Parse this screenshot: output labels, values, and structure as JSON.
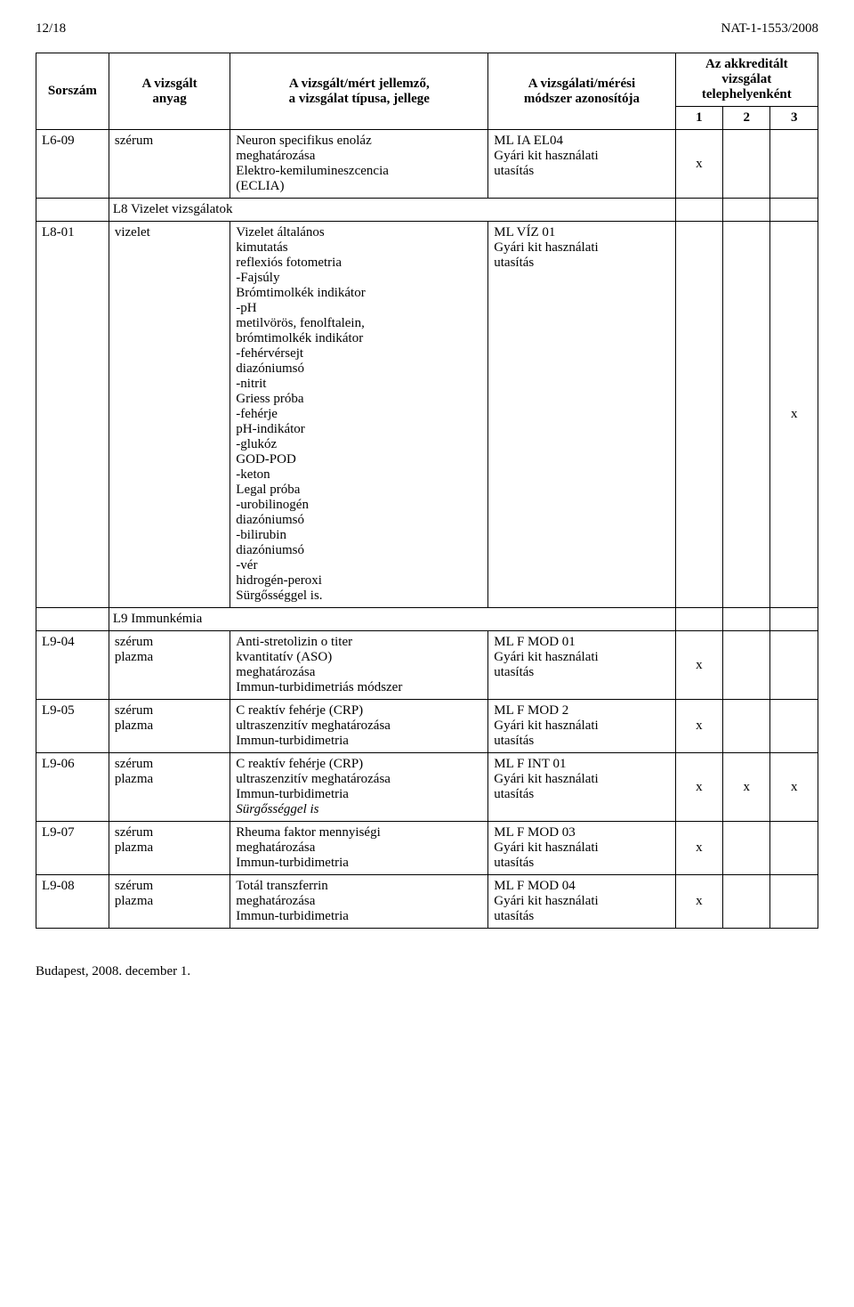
{
  "page_header": {
    "left": "12/18",
    "right": "NAT-1-1553/2008"
  },
  "columns": {
    "sorszam": "Sorszám",
    "anyag": "A vizsgált\nanyag",
    "jellemzo": "A vizsgált/mért jellemző,\na vizsgálat típusa, jellege",
    "modszer": "A vizsgálati/mérési\nmódszer azonosítója",
    "akk": "Az akkreditált\nvizsgálat\ntelephelyenként",
    "c1": "1",
    "c2": "2",
    "c3": "3"
  },
  "rows": [
    {
      "sor": "L6-09",
      "anyag": "szérum",
      "jell": "Neuron specifikus enoláz\nmeghatározása\nElektro-kemilumineszcencia\n(ECLIA)",
      "mod": "ML IA EL04\nGyári kit használati\nutasítás",
      "m": [
        "x",
        "",
        ""
      ]
    },
    {
      "section": "L8 Vizelet vizsgálatok"
    },
    {
      "sor": "L8-01",
      "anyag": "vizelet",
      "jell": "Vizelet általános\nkimutatás\nreflexiós fotometria\n-Fajsúly\nBrómtimolkék indikátor\n-pH\nmetilvörös, fenolftalein,\nbrómtimolkék indikátor\n-fehérvérsejt\ndiazóniumsó\n-nitrit\nGriess próba\n-fehérje\npH-indikátor\n-glukóz\nGOD-POD\n-keton\nLegal próba\n-urobilinogén\ndiazóniumsó\n-bilirubin\ndiazóniumsó\n-vér\nhidrogén-peroxi\nSürgősséggel is.",
      "mod": "ML VÍZ 01\nGyári kit használati\nutasítás",
      "m": [
        "",
        "",
        "x"
      ]
    },
    {
      "section": "L9 Immunkémia"
    },
    {
      "sor": "L9-04",
      "anyag": "szérum\nplazma",
      "jell": "Anti-stretolizin o titer\nkvantitatív (ASO)\nmeghatározása\nImmun-turbidimetriás módszer",
      "mod": "ML F MOD 01\nGyári kit használati\nutasítás",
      "m": [
        "x",
        "",
        ""
      ]
    },
    {
      "sor": "L9-05",
      "anyag": "szérum\nplazma",
      "jell": "C reaktív fehérje (CRP)\nultraszenzitív meghatározása\nImmun-turbidimetria",
      "mod": "ML F MOD 2\nGyári kit használati\nutasítás",
      "m": [
        "x",
        "",
        ""
      ]
    },
    {
      "sor": "L9-06",
      "anyag": "szérum\nplazma",
      "jell": "C reaktív fehérje (CRP)\nultraszenzitív meghatározása\nImmun-turbidimetria",
      "mod": "ML F INT 01\nGyári kit használati\nutasítás",
      "m": [
        "x",
        "x",
        "x"
      ],
      "extra_ital": "Sürgősséggel is"
    },
    {
      "sor": "L9-07",
      "anyag": "szérum\nplazma",
      "jell": "Rheuma faktor mennyiségi\nmeghatározása\nImmun-turbidimetria",
      "mod": "ML F MOD 03\nGyári kit használati\nutasítás",
      "m": [
        "x",
        "",
        ""
      ]
    },
    {
      "sor": "L9-08",
      "anyag": "szérum\nplazma",
      "jell": "Totál transzferrin\nmeghatározása\nImmun-turbidimetria",
      "mod": "ML F MOD 04\nGyári kit használati\nutasítás",
      "m": [
        "x",
        "",
        ""
      ]
    }
  ],
  "footer": "Budapest, 2008. december 1."
}
